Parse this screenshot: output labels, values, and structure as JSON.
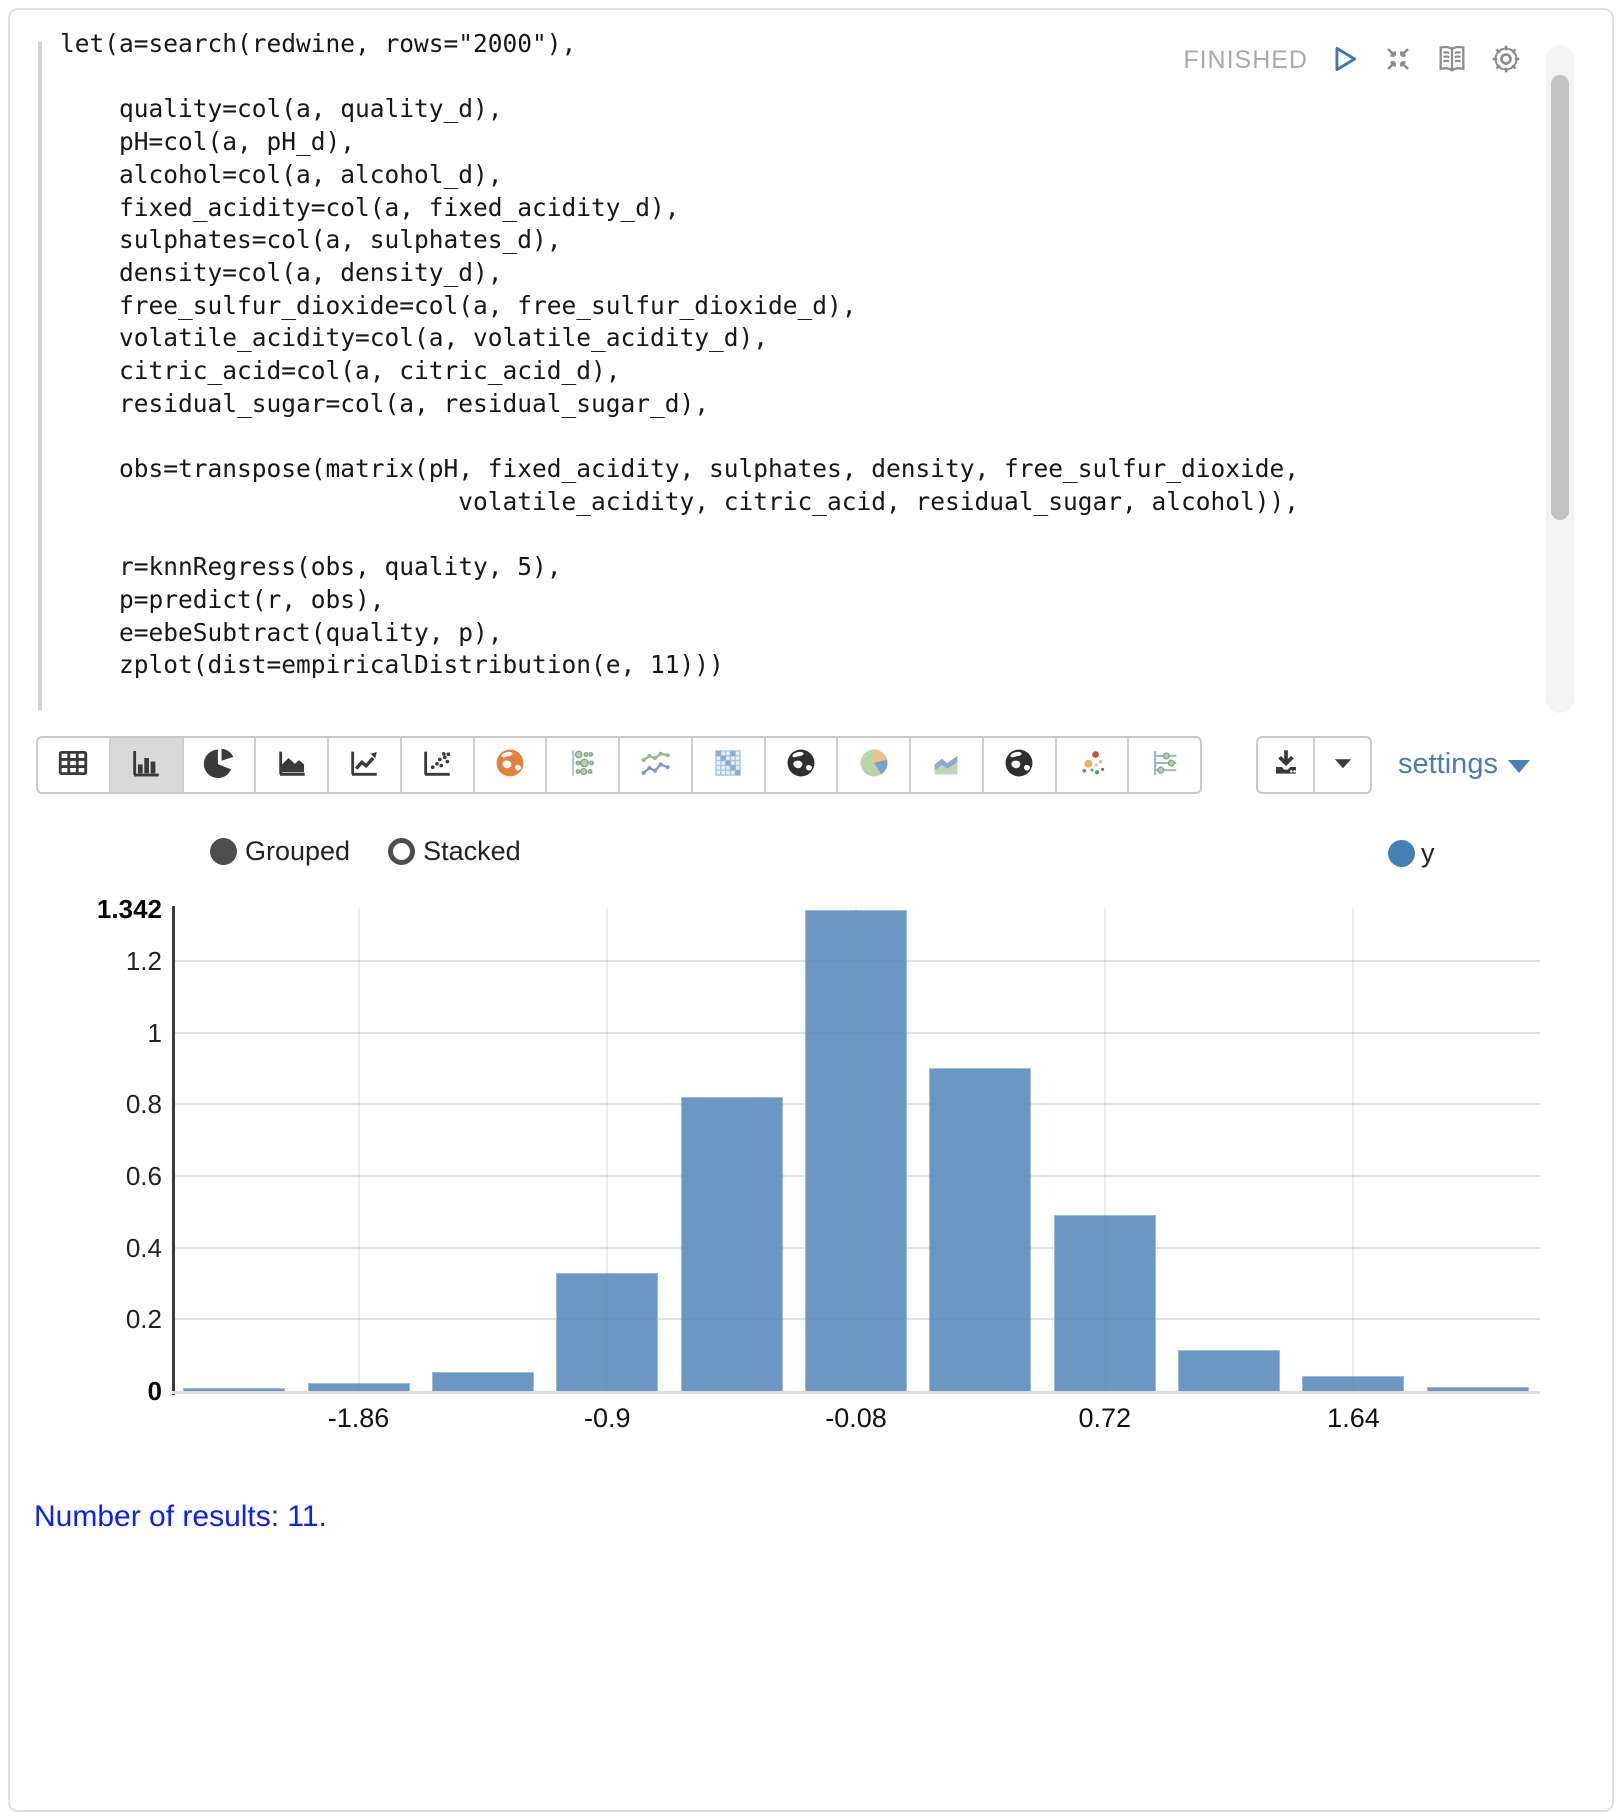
{
  "paragraph": {
    "status": "FINISHED",
    "code_lines": [
      "let(a=search(redwine, rows=\"2000\"),",
      "",
      "    quality=col(a, quality_d),",
      "    pH=col(a, pH_d),",
      "    alcohol=col(a, alcohol_d),",
      "    fixed_acidity=col(a, fixed_acidity_d),",
      "    sulphates=col(a, sulphates_d),",
      "    density=col(a, density_d),",
      "    free_sulfur_dioxide=col(a, free_sulfur_dioxide_d),",
      "    volatile_acidity=col(a, volatile_acidity_d),",
      "    citric_acid=col(a, citric_acid_d),",
      "    residual_sugar=col(a, residual_sugar_d),",
      "",
      "    obs=transpose(matrix(pH, fixed_acidity, sulphates, density, free_sulfur_dioxide,",
      "                           volatile_acidity, citric_acid, residual_sugar, alcohol)),",
      "",
      "    r=knnRegress(obs, quality, 5),",
      "    p=predict(r, obs),",
      "    e=ebeSubtract(quality, p),",
      "    zplot(dist=empiricalDistribution(e, 11)))"
    ]
  },
  "viz_toolbar": {
    "chart_type_buttons": [
      {
        "icon": "table-icon",
        "selected": false
      },
      {
        "icon": "bar-chart-icon",
        "selected": true
      },
      {
        "icon": "pie-chart-icon",
        "selected": false
      },
      {
        "icon": "area-chart-icon",
        "selected": false
      },
      {
        "icon": "line-chart-icon",
        "selected": false
      },
      {
        "icon": "scatter-chart-icon",
        "selected": false
      },
      {
        "icon": "globe-orange-icon",
        "selected": false
      },
      {
        "icon": "bubble-chart-icon",
        "selected": false
      },
      {
        "icon": "multi-line-chart-icon",
        "selected": false
      },
      {
        "icon": "heatmap-icon",
        "selected": false
      },
      {
        "icon": "globe-dark-icon",
        "selected": false
      },
      {
        "icon": "pie-colored-icon",
        "selected": false
      },
      {
        "icon": "area-colored-icon",
        "selected": false
      },
      {
        "icon": "globe-dark2-icon",
        "selected": false
      },
      {
        "icon": "scatter-colored-icon",
        "selected": false
      },
      {
        "icon": "parallel-coords-icon",
        "selected": false
      }
    ],
    "settings_label": "settings"
  },
  "chart_controls": {
    "grouped_label": "Grouped",
    "stacked_label": "Stacked",
    "grouped_selected": true
  },
  "chart_data": {
    "type": "bar",
    "title": "",
    "xlabel": "",
    "ylabel": "",
    "series": [
      {
        "name": "y",
        "color": "#6d99c4",
        "values": [
          0.008,
          0.022,
          0.054,
          0.33,
          0.82,
          1.342,
          0.9,
          0.49,
          0.115,
          0.042,
          0.012
        ]
      }
    ],
    "x_tick_labels": [
      "-1.86",
      "-0.9",
      "-0.08",
      "0.72",
      "1.64"
    ],
    "x_tick_bar_indices": [
      1,
      3,
      5,
      7,
      9
    ],
    "y_ticks": [
      0,
      0.2,
      0.4,
      0.6,
      0.8,
      1,
      1.2
    ],
    "y_tick_labels": [
      "0",
      "0.2",
      "0.4",
      "0.6",
      "0.8",
      "1",
      "1.2"
    ],
    "y_max_label": "1.342",
    "ylim": [
      0,
      1.342
    ],
    "grid": true,
    "legend_position": "top-right"
  },
  "output_footer": {
    "results_text": "Number of results: 11."
  },
  "colors": {
    "bar_fill": "#6d99c4",
    "legend_dot": "#4580b4",
    "accent_blue": "#4a7db6",
    "results_text": "#0c20f5",
    "status_text": "#a9a9a9"
  }
}
